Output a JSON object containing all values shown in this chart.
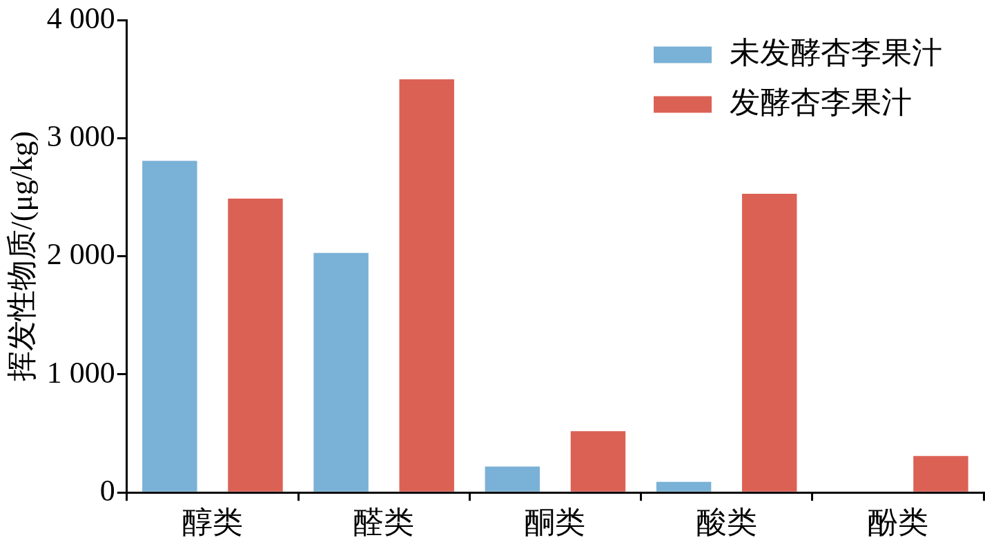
{
  "chart_data": {
    "type": "bar",
    "ylabel": "挥发性物质/(μg/kg)",
    "categories": [
      "醇类",
      "醛类",
      "酮类",
      "酸类",
      "酚类"
    ],
    "series": [
      {
        "name": "未发酵杏李果汁",
        "color": "#7ab1d6",
        "values": [
          2810,
          2030,
          220,
          90,
          0
        ]
      },
      {
        "name": "发酵杏李果汁",
        "color": "#dc6155",
        "values": [
          2490,
          3500,
          520,
          2530,
          310
        ]
      }
    ],
    "ylim": [
      0,
      4000
    ],
    "yticks": [
      {
        "value": 0,
        "label": "0"
      },
      {
        "value": 1000,
        "label": "1 000"
      },
      {
        "value": 2000,
        "label": "2 000"
      },
      {
        "value": 3000,
        "label": "3 000"
      },
      {
        "value": 4000,
        "label": "4 000"
      }
    ],
    "grid": false,
    "legend": "top right"
  }
}
